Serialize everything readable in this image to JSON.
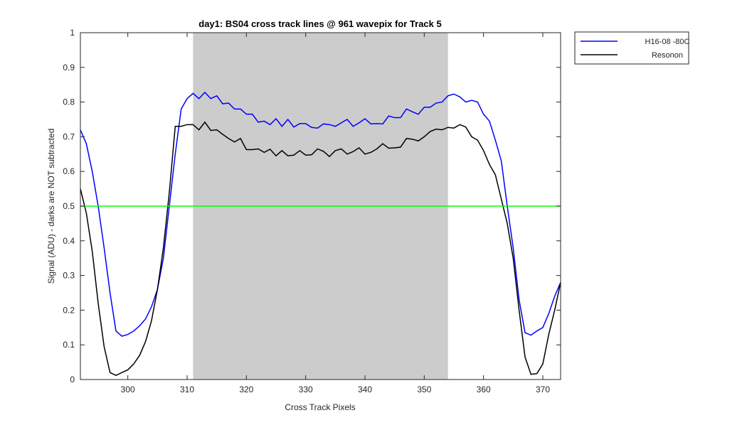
{
  "chart_data": {
    "type": "line",
    "title": "day1: BS04  cross track lines @ 961 wavepix for Track 5",
    "x_label": "Cross Track Pixels",
    "y_label": "Signal (ADU) - darks are NOT subtracted",
    "x": [
      292,
      293,
      294,
      295,
      296,
      297,
      298,
      299,
      300,
      301,
      302,
      303,
      304,
      305,
      306,
      307,
      308,
      309,
      310,
      311,
      312,
      313,
      314,
      315,
      316,
      317,
      318,
      319,
      320,
      321,
      322,
      323,
      324,
      325,
      326,
      327,
      328,
      329,
      330,
      331,
      332,
      333,
      334,
      335,
      336,
      337,
      338,
      339,
      340,
      341,
      342,
      343,
      344,
      345,
      346,
      347,
      348,
      349,
      350,
      351,
      352,
      353,
      354,
      355,
      356,
      357,
      358,
      359,
      360,
      361,
      362,
      363,
      364,
      365,
      366,
      367,
      368,
      369,
      370,
      371,
      372,
      373
    ],
    "series": [
      {
        "name": "H16-08 -80C",
        "color": "#0000ff",
        "values": [
          0.72,
          0.68,
          0.6,
          0.5,
          0.38,
          0.25,
          0.14,
          0.125,
          0.13,
          0.14,
          0.155,
          0.175,
          0.21,
          0.26,
          0.35,
          0.5,
          0.65,
          0.78,
          0.81,
          0.825,
          0.81,
          0.828,
          0.81,
          0.818,
          0.795,
          0.797,
          0.78,
          0.78,
          0.765,
          0.765,
          0.742,
          0.745,
          0.735,
          0.752,
          0.73,
          0.75,
          0.728,
          0.738,
          0.738,
          0.727,
          0.725,
          0.737,
          0.735,
          0.73,
          0.74,
          0.75,
          0.73,
          0.74,
          0.752,
          0.737,
          0.738,
          0.737,
          0.76,
          0.755,
          0.755,
          0.78,
          0.772,
          0.765,
          0.785,
          0.785,
          0.797,
          0.8,
          0.818,
          0.823,
          0.815,
          0.8,
          0.805,
          0.8,
          0.765,
          0.745,
          0.69,
          0.63,
          0.5,
          0.38,
          0.23,
          0.135,
          0.128,
          0.14,
          0.15,
          0.19,
          0.24,
          0.28
        ]
      },
      {
        "name": "Resonon",
        "color": "#000000",
        "values": [
          0.55,
          0.48,
          0.37,
          0.22,
          0.095,
          0.02,
          0.012,
          0.02,
          0.028,
          0.045,
          0.07,
          0.11,
          0.17,
          0.26,
          0.38,
          0.54,
          0.73,
          0.73,
          0.735,
          0.735,
          0.72,
          0.742,
          0.718,
          0.72,
          0.707,
          0.695,
          0.685,
          0.695,
          0.663,
          0.663,
          0.665,
          0.655,
          0.664,
          0.645,
          0.66,
          0.645,
          0.647,
          0.66,
          0.647,
          0.648,
          0.665,
          0.658,
          0.643,
          0.66,
          0.665,
          0.65,
          0.657,
          0.668,
          0.65,
          0.655,
          0.665,
          0.68,
          0.667,
          0.668,
          0.67,
          0.695,
          0.693,
          0.688,
          0.7,
          0.715,
          0.722,
          0.72,
          0.727,
          0.725,
          0.735,
          0.728,
          0.7,
          0.69,
          0.66,
          0.62,
          0.59,
          0.52,
          0.45,
          0.35,
          0.2,
          0.065,
          0.015,
          0.017,
          0.045,
          0.13,
          0.2,
          0.28
        ]
      }
    ],
    "hline": {
      "value": 0.5,
      "color": "#00ff00"
    },
    "shaded_xrange": [
      311,
      354
    ],
    "shade_color": "#cccccc",
    "xlim": [
      292,
      373
    ],
    "xticks": [
      300,
      310,
      320,
      330,
      340,
      350,
      360,
      370
    ],
    "ylim": [
      0,
      1
    ],
    "yticks": [
      0,
      0.1,
      0.2,
      0.3,
      0.4,
      0.5,
      0.6,
      0.7,
      0.8,
      0.9,
      1
    ],
    "legend": "outside-top-right"
  }
}
